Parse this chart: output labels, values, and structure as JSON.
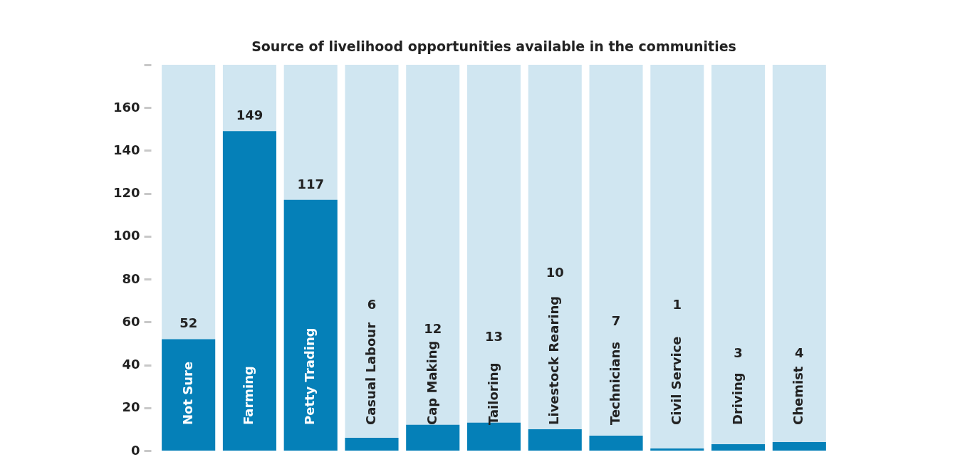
{
  "chart_data": {
    "type": "bar",
    "title": "Source of livelihood opportunities available in the communities",
    "categories": [
      "Not Sure",
      "Farming",
      "Petty Trading",
      "Casual Labour",
      "Cap Making",
      "Tailoring",
      "Livestock Rearing",
      "Technicians",
      "Civil Service",
      "Driving",
      "Chemist"
    ],
    "values": [
      52,
      149,
      117,
      6,
      12,
      13,
      10,
      7,
      1,
      3,
      4
    ],
    "value_labels": [
      "52",
      "149",
      "117",
      null,
      null,
      null,
      null,
      null,
      null,
      null,
      null
    ],
    "annotations": [
      "6",
      "12",
      "13",
      "10",
      "7",
      "1",
      "3",
      "4"
    ],
    "color": "#0580b8",
    "ylim": [
      0,
      180
    ],
    "yticks": [
      0,
      20,
      40,
      60,
      80,
      100,
      120,
      140,
      160,
      {
        "value": 180,
        "label": null
      }
    ]
  }
}
